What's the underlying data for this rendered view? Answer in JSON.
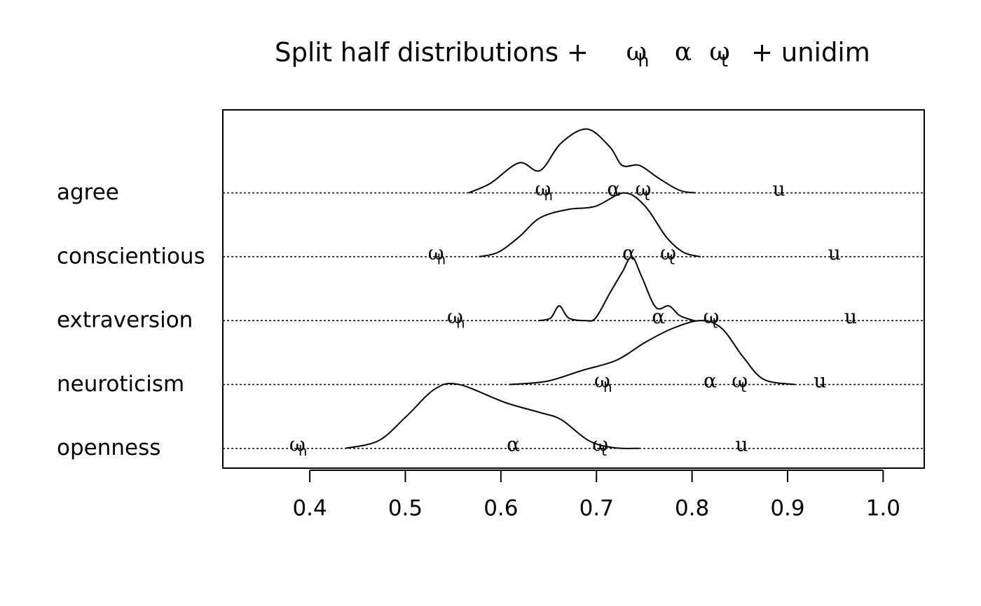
{
  "chart_data": {
    "type": "ridge",
    "title": "Split half distributions +",
    "title_end": "+ unidim",
    "markers": [
      {
        "symbol": "ω",
        "subscript": "h"
      },
      {
        "symbol": "α"
      },
      {
        "symbol": "ω",
        "subscript": "t"
      },
      {
        "symbol": "u"
      }
    ],
    "series": [
      {
        "name": "agree",
        "x": [
          0.566,
          0.589,
          0.619,
          0.641,
          0.663,
          0.69,
          0.714,
          0.727,
          0.745,
          0.765,
          0.787,
          0.804
        ],
        "density": [
          0,
          0.15,
          0.47,
          0.35,
          0.78,
          1.0,
          0.72,
          0.43,
          0.43,
          0.23,
          0.04,
          0
        ],
        "stats": [
          0.645,
          0.718,
          0.749,
          0.891
        ]
      },
      {
        "name": "conscientious",
        "x": [
          0.577,
          0.597,
          0.619,
          0.641,
          0.67,
          0.699,
          0.729,
          0.751,
          0.773,
          0.791,
          0.809
        ],
        "density": [
          0,
          0.07,
          0.31,
          0.61,
          0.74,
          0.79,
          1.0,
          0.79,
          0.31,
          0.07,
          0
        ],
        "stats": [
          0.533,
          0.734,
          0.775,
          0.949
        ]
      },
      {
        "name": "extraversion",
        "x": [
          0.639,
          0.652,
          0.661,
          0.671,
          0.688,
          0.699,
          0.714,
          0.727,
          0.737,
          0.747,
          0.762,
          0.776,
          0.787,
          0.802
        ],
        "density": [
          0,
          0.04,
          0.23,
          0.04,
          0,
          0.04,
          0.43,
          0.76,
          1.0,
          0.7,
          0.21,
          0.23,
          0.08,
          0
        ],
        "stats": [
          0.553,
          0.765,
          0.82,
          0.966
        ]
      },
      {
        "name": "neuroticism",
        "x": [
          0.609,
          0.648,
          0.685,
          0.721,
          0.751,
          0.78,
          0.809,
          0.831,
          0.853,
          0.875,
          0.908
        ],
        "density": [
          0,
          0.05,
          0.22,
          0.38,
          0.66,
          0.88,
          1.0,
          0.88,
          0.44,
          0.08,
          0
        ],
        "stats": [
          0.707,
          0.819,
          0.85,
          0.934
        ]
      },
      {
        "name": "openness",
        "x": [
          0.437,
          0.472,
          0.501,
          0.531,
          0.556,
          0.604,
          0.641,
          0.663,
          0.692,
          0.718,
          0.745
        ],
        "density": [
          0,
          0.12,
          0.5,
          0.93,
          1.0,
          0.72,
          0.56,
          0.45,
          0.12,
          0.01,
          0
        ],
        "stats": [
          0.388,
          0.613,
          0.704,
          0.852
        ]
      }
    ],
    "xlim": [
      0.309,
      1.043
    ],
    "xticks": [
      0.4,
      0.5,
      0.6,
      0.7,
      0.8,
      0.9,
      {
        "value": 1,
        "label": "1.0"
      }
    ],
    "ylim": [
      0.69,
      6.3
    ]
  }
}
